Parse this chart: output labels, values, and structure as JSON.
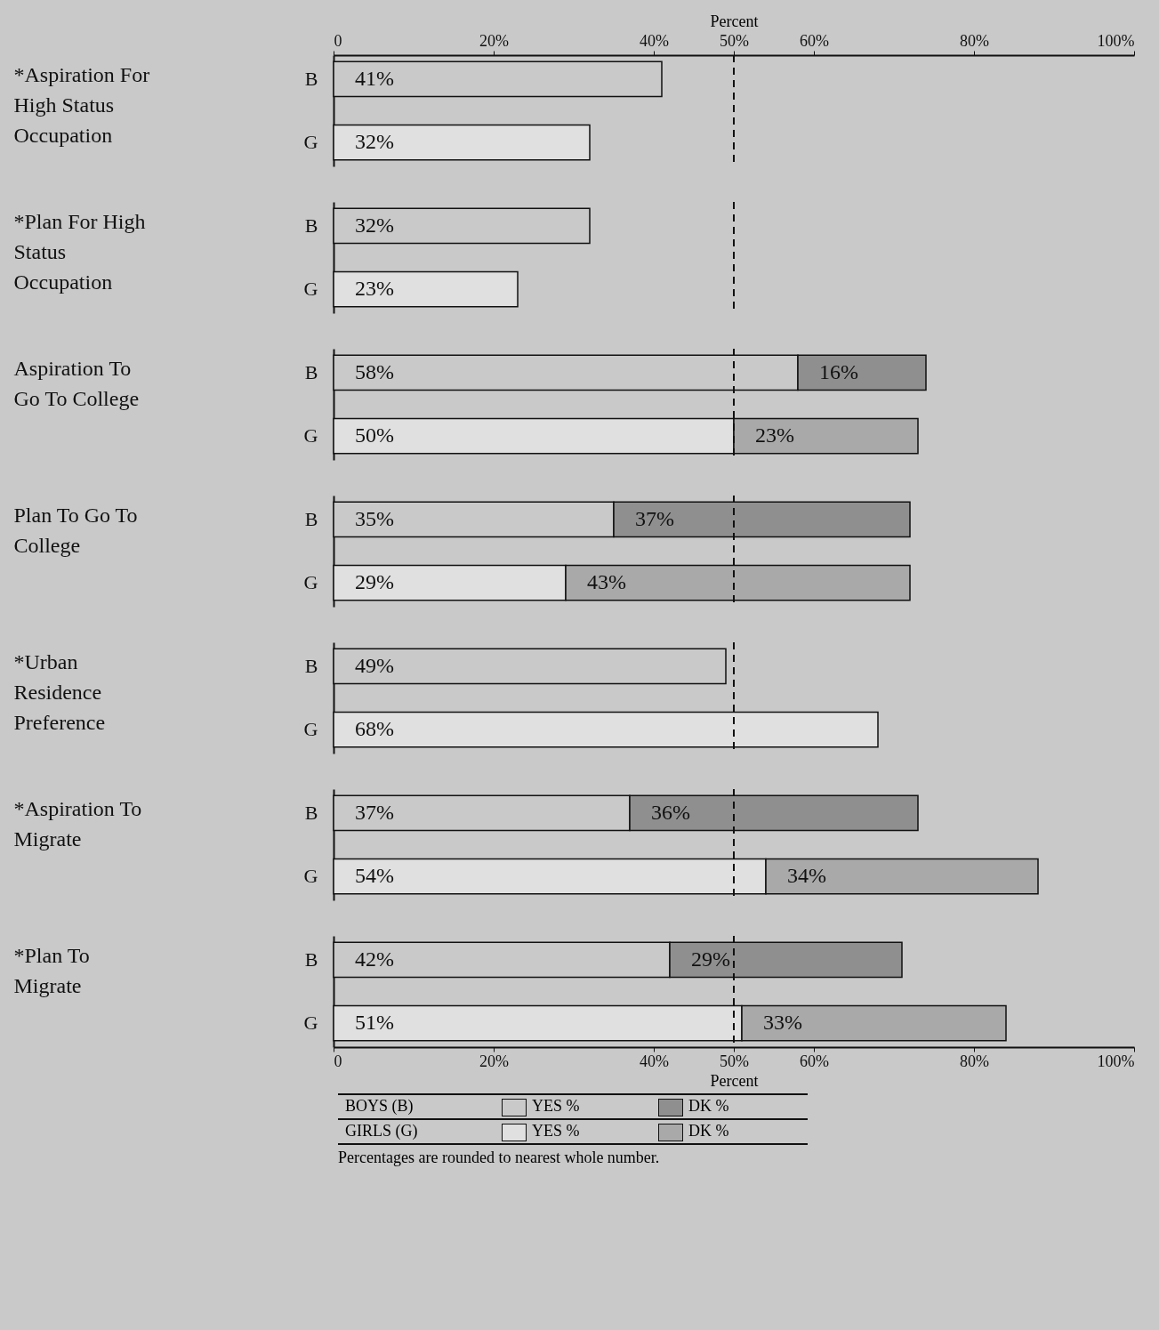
{
  "chart_data": [
    {
      "type": "bar",
      "orientation": "horizontal",
      "stacked": true,
      "ylabel": "*Aspiration For High Status Occupation",
      "categories": [
        "B",
        "G"
      ],
      "x2label": "Percent",
      "x2lim": [
        0,
        100
      ],
      "x2ticks": [
        0,
        {
          "value": 20,
          "label": "20%"
        },
        {
          "value": 40,
          "label": "40%"
        },
        {
          "value": 50,
          "label": "50%"
        },
        {
          "value": 60,
          "label": "60%"
        },
        {
          "value": 80,
          "label": "80%"
        },
        {
          "value": 100,
          "label": "100%"
        }
      ],
      "series": [
        {
          "colors": [
            "#c9c9c9",
            "#e0e0e0"
          ],
          "values": [
            41,
            32
          ],
          "value_labels": [
            "41%",
            "32%"
          ]
        }
      ],
      "ref_lines": [
        {
          "axis": "x",
          "value": 50,
          "line_style": "dashed",
          "color": "#111111"
        }
      ]
    },
    {
      "type": "bar",
      "orientation": "horizontal",
      "stacked": true,
      "ylabel": "*Plan For High Status Occupation",
      "categories": [
        "B",
        "G"
      ],
      "xlim": [
        0,
        100
      ],
      "tick_labels": "y",
      "series": [
        {
          "colors": [
            "#c9c9c9",
            "#e0e0e0"
          ],
          "values": [
            32,
            23
          ],
          "value_labels": [
            "32%",
            "23%"
          ]
        }
      ],
      "ref_lines": [
        {
          "axis": "x",
          "value": 50,
          "line_style": "dashed",
          "color": "#111111"
        }
      ]
    },
    {
      "type": "bar",
      "orientation": "horizontal",
      "stacked": true,
      "ylabel": "Aspiration To Go To College",
      "categories": [
        "B",
        "G"
      ],
      "xlim": [
        0,
        100
      ],
      "tick_labels": "y",
      "series": [
        {
          "colors": [
            "#c9c9c9",
            "#e0e0e0"
          ],
          "values": [
            58,
            50
          ],
          "value_labels": [
            "58%",
            "50%"
          ]
        },
        {
          "colors": [
            "#8f8f8f",
            "#a9a9a9"
          ],
          "values": [
            16,
            23
          ],
          "value_labels": [
            "16%",
            "23%"
          ]
        }
      ],
      "ref_lines": [
        {
          "axis": "x",
          "value": 50,
          "line_style": "dashed",
          "color": "#111111"
        }
      ]
    },
    {
      "type": "bar",
      "orientation": "horizontal",
      "stacked": true,
      "ylabel": "Plan To Go To College",
      "categories": [
        "B",
        "G"
      ],
      "xlim": [
        0,
        100
      ],
      "tick_labels": "y",
      "series": [
        {
          "colors": [
            "#c9c9c9",
            "#e0e0e0"
          ],
          "values": [
            35,
            29
          ],
          "value_labels": [
            "35%",
            "29%"
          ]
        },
        {
          "colors": [
            "#8f8f8f",
            "#a9a9a9"
          ],
          "values": [
            37,
            43
          ],
          "value_labels": [
            "37%",
            "43%"
          ]
        }
      ],
      "ref_lines": [
        {
          "axis": "x",
          "value": 50,
          "line_style": "dashed",
          "color": "#111111"
        }
      ]
    },
    {
      "type": "bar",
      "orientation": "horizontal",
      "stacked": true,
      "ylabel": "*Urban Residence Preference",
      "categories": [
        "B",
        "G"
      ],
      "xlim": [
        0,
        100
      ],
      "tick_labels": "y",
      "series": [
        {
          "colors": [
            "#c9c9c9",
            "#e0e0e0"
          ],
          "values": [
            49,
            68
          ],
          "value_labels": [
            "49%",
            "68%"
          ]
        }
      ],
      "ref_lines": [
        {
          "axis": "x",
          "value": 50,
          "line_style": "dashed",
          "color": "#111111"
        }
      ]
    },
    {
      "type": "bar",
      "orientation": "horizontal",
      "stacked": true,
      "ylabel": "*Aspiration To Migrate",
      "categories": [
        "B",
        "G"
      ],
      "xlim": [
        0,
        100
      ],
      "tick_labels": "y",
      "series": [
        {
          "colors": [
            "#c9c9c9",
            "#e0e0e0"
          ],
          "values": [
            37,
            54
          ],
          "value_labels": [
            "37%",
            "54%"
          ]
        },
        {
          "colors": [
            "#8f8f8f",
            "#a9a9a9"
          ],
          "values": [
            36,
            34
          ],
          "value_labels": [
            "36%",
            "34%"
          ]
        }
      ],
      "ref_lines": [
        {
          "axis": "x",
          "value": 50,
          "line_style": "dashed",
          "color": "#111111"
        }
      ]
    },
    {
      "type": "bar",
      "orientation": "horizontal",
      "stacked": true,
      "ylabel": "*Plan To Migrate",
      "categories": [
        "B",
        "G"
      ],
      "xlabel": "Percent",
      "xlim": [
        0,
        100
      ],
      "xticks": [
        0,
        {
          "value": 20,
          "label": "20%"
        },
        {
          "value": 40,
          "label": "40%"
        },
        {
          "value": 50,
          "label": "50%"
        },
        {
          "value": 60,
          "label": "60%"
        },
        {
          "value": 80,
          "label": "80%"
        },
        {
          "value": 100,
          "label": "100%"
        }
      ],
      "series": [
        {
          "name": "YES %",
          "colors": [
            "#c9c9c9",
            "#e0e0e0"
          ],
          "values": [
            42,
            51
          ],
          "value_labels": [
            "42%",
            "51%"
          ]
        },
        {
          "name": "DK %",
          "colors": [
            "#8f8f8f",
            "#a9a9a9"
          ],
          "values": [
            29,
            33
          ],
          "value_labels": [
            "29%",
            "33%"
          ]
        }
      ],
      "ref_lines": [
        {
          "axis": "x",
          "value": 50,
          "line_style": "dashed",
          "color": "#111111"
        }
      ],
      "legend": "bottom",
      "annotations": [
        "BOYS (B)",
        "GIRLS (G)",
        "Percentages are rounded to nearest whole number."
      ]
    }
  ]
}
